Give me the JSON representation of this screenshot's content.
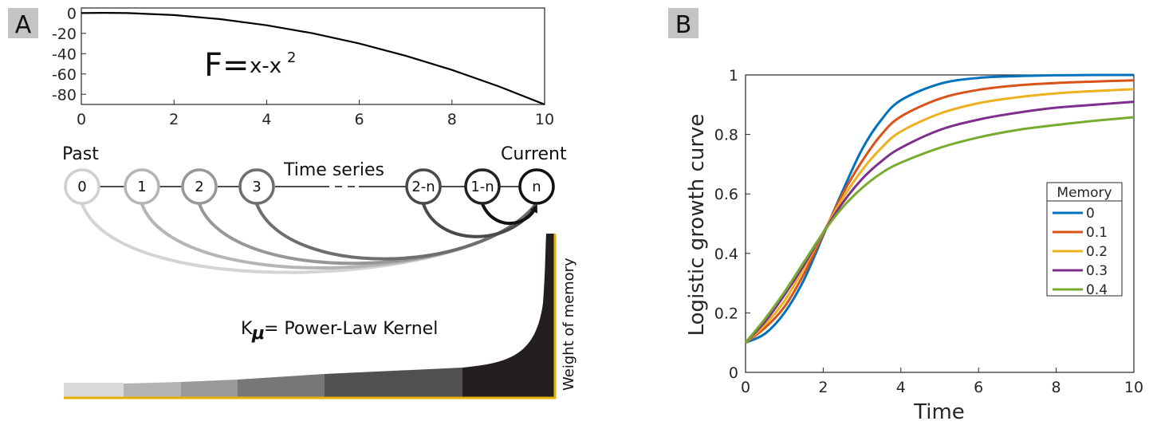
{
  "panels": {
    "a": {
      "label": "A"
    },
    "b": {
      "label": "B"
    }
  },
  "diagram": {
    "equation": {
      "lhs": "F=",
      "rhs_base": "x-x",
      "rhs_exp": "2"
    },
    "past_label": "Past",
    "current_label": "Current",
    "time_series_label": "Time series",
    "nodes": [
      "0",
      "1",
      "2",
      "3",
      "2-n",
      "1-n",
      "n"
    ],
    "kernel_k": "K",
    "kernel_mu": "μ",
    "kernel_text": "= Power-Law Kernel",
    "weight_label": "Weight of memory",
    "colors": {
      "highlight": "#e8b100",
      "tag_bg": "#c4c4c4"
    }
  },
  "chart_data": [
    {
      "type": "line",
      "function": "F = x - x^2",
      "xlim": [
        0,
        10
      ],
      "ylim": [
        -90,
        5
      ],
      "xticks": [
        "0",
        "2",
        "4",
        "6",
        "8",
        "10"
      ],
      "yticks": [
        "0",
        "-20",
        "-40",
        "-60",
        "-80"
      ],
      "xlabel": "",
      "ylabel": "",
      "series": [
        {
          "x": [
            0,
            0.5,
            1,
            2,
            3,
            4,
            5,
            6,
            7,
            8,
            9,
            10
          ],
          "y": [
            0,
            0.25,
            0,
            -2,
            -6,
            -12,
            -20,
            -30,
            -42,
            -56,
            -72,
            -90
          ],
          "color": "#000000"
        }
      ]
    },
    {
      "type": "line",
      "title": "",
      "xlabel": "Time",
      "ylabel": "Logistic growth curve",
      "xlim": [
        0,
        10
      ],
      "ylim": [
        0,
        1
      ],
      "xticks": [
        "0",
        "2",
        "4",
        "6",
        "8",
        "10"
      ],
      "yticks": [
        "0",
        "0.2",
        "0.4",
        "0.6",
        "0.8",
        "1"
      ],
      "legend": {
        "title": "Memory",
        "position": "right"
      },
      "x": [
        0,
        0.5,
        1,
        1.5,
        2,
        2.5,
        3,
        3.5,
        4,
        5,
        6,
        7,
        8,
        9,
        10
      ],
      "series": [
        {
          "name": "0",
          "color": "#0072BD",
          "values": [
            0.1,
            0.13,
            0.2,
            0.31,
            0.46,
            0.61,
            0.75,
            0.85,
            0.915,
            0.97,
            0.99,
            0.996,
            0.999,
            1.0,
            1.0
          ]
        },
        {
          "name": "0.1",
          "color": "#D95319",
          "values": [
            0.1,
            0.15,
            0.22,
            0.33,
            0.465,
            0.6,
            0.71,
            0.8,
            0.86,
            0.92,
            0.95,
            0.965,
            0.973,
            0.978,
            0.982
          ]
        },
        {
          "name": "0.2",
          "color": "#EDB120",
          "values": [
            0.1,
            0.16,
            0.24,
            0.35,
            0.47,
            0.585,
            0.68,
            0.755,
            0.81,
            0.87,
            0.905,
            0.925,
            0.938,
            0.946,
            0.952
          ]
        },
        {
          "name": "0.3",
          "color": "#7E2F8E",
          "values": [
            0.1,
            0.17,
            0.26,
            0.36,
            0.47,
            0.57,
            0.65,
            0.71,
            0.755,
            0.815,
            0.85,
            0.873,
            0.89,
            0.9,
            0.91
          ]
        },
        {
          "name": "0.4",
          "color": "#77AC30",
          "values": [
            0.1,
            0.18,
            0.27,
            0.37,
            0.47,
            0.555,
            0.62,
            0.67,
            0.705,
            0.755,
            0.79,
            0.815,
            0.832,
            0.846,
            0.858
          ]
        }
      ]
    }
  ]
}
